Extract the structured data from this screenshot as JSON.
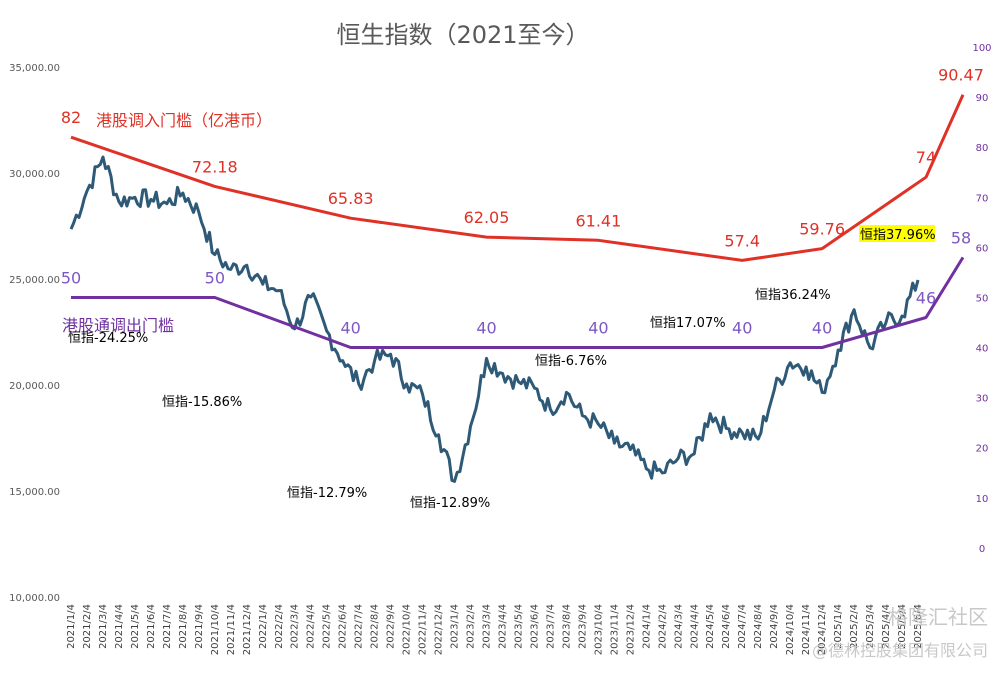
{
  "chart_data": {
    "type": "line",
    "title": "恒生指数（2021至今）",
    "y_left": {
      "ticks": [
        "10,000.00",
        "15,000.00",
        "20,000.00",
        "25,000.00",
        "30,000.00",
        "35,000.00"
      ],
      "tick_values": [
        10000,
        15000,
        20000,
        25000,
        30000,
        35000
      ],
      "range": [
        10000,
        35000
      ]
    },
    "y_right": {
      "ticks": [
        "0",
        "10",
        "20",
        "30",
        "40",
        "50",
        "60",
        "70",
        "80",
        "90",
        "100"
      ],
      "tick_values": [
        0,
        10,
        20,
        30,
        40,
        50,
        60,
        70,
        80,
        90,
        100
      ],
      "range": [
        -10,
        100
      ]
    },
    "x_labels": [
      "2021/1/4",
      "2021/2/4",
      "2021/3/4",
      "2021/4/4",
      "2021/5/4",
      "2021/6/4",
      "2021/7/4",
      "2021/8/4",
      "2021/9/4",
      "2021/10/4",
      "2021/11/4",
      "2021/12/4",
      "2022/1/4",
      "2022/2/4",
      "2022/3/4",
      "2022/4/4",
      "2022/5/4",
      "2022/6/4",
      "2022/7/4",
      "2022/8/4",
      "2022/9/4",
      "2022/10/4",
      "2022/11/4",
      "2022/12/4",
      "2023/1/4",
      "2023/2/4",
      "2023/3/4",
      "2023/4/4",
      "2023/5/4",
      "2023/6/4",
      "2023/7/4",
      "2023/8/4",
      "2023/9/4",
      "2023/10/4",
      "2023/11/4",
      "2023/12/4",
      "2024/1/4",
      "2024/2/4",
      "2024/3/4",
      "2024/4/4",
      "2024/5/4",
      "2024/6/4",
      "2024/7/4",
      "2024/8/4",
      "2024/9/4",
      "2024/10/4",
      "2024/11/4",
      "2024/12/4",
      "2025/1/4",
      "2025/2/4",
      "2025/3/4",
      "2025/4/4",
      "2025/5/4",
      "2025/6/4"
    ],
    "series": [
      {
        "name": "恒生指数",
        "axis": "left",
        "color": "#2e5a78",
        "values": [
          27400,
          29200,
          30800,
          28700,
          28900,
          28800,
          28600,
          29100,
          28200,
          26200,
          25500,
          25700,
          24800,
          24500,
          22700,
          24200,
          22600,
          21200,
          20100,
          21200,
          21500,
          20100,
          19600,
          17700,
          15500,
          18100,
          21300,
          20600,
          20200,
          19900,
          18900,
          19700,
          18600,
          18200,
          17300,
          17000,
          16100,
          15900,
          16600,
          16800,
          18700,
          18000,
          17800,
          17500,
          19800,
          21100,
          20900,
          19700,
          21700,
          23600,
          21800,
          23000,
          23300,
          25000
        ]
      },
      {
        "name": "港股调入门槛（亿港币）",
        "axis": "right",
        "color": "#e03127",
        "x": [
          0,
          9,
          17.5,
          26,
          33,
          42,
          47,
          53.5
        ],
        "values": [
          82,
          72.18,
          65.83,
          62.05,
          61.41,
          57.4,
          59.76,
          74
        ],
        "end_value": 90.47
      },
      {
        "name": "港股通调出门槛",
        "axis": "right",
        "color": "#7030a0",
        "x": [
          0,
          9,
          17.5,
          26,
          33,
          42,
          47,
          53.5
        ],
        "values": [
          50,
          50,
          40,
          40,
          40,
          40,
          40,
          46
        ],
        "end_value": 58
      }
    ],
    "red_labels": [
      "82",
      "72.18",
      "65.83",
      "62.05",
      "61.41",
      "57.4",
      "59.76",
      "74",
      "90.47"
    ],
    "purple_labels": [
      "50",
      "50",
      "40",
      "40",
      "40",
      "40",
      "40",
      "46",
      "58"
    ],
    "annotations": [
      "恒指-24.25%",
      "恒指-15.86%",
      "恒指-12.79%",
      "恒指-12.89%",
      "恒指-6.76%",
      "恒指17.07%",
      "恒指36.24%",
      "恒指37.96%"
    ]
  },
  "watermarks": [
    "格隆汇社区",
    "@德林控股集团有限公司"
  ]
}
